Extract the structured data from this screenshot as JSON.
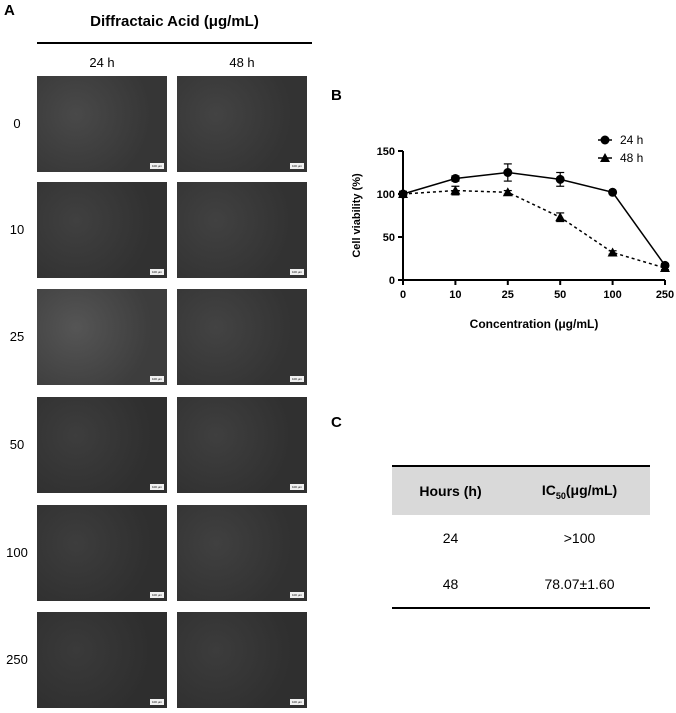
{
  "panel_a": {
    "letter": "A",
    "title": "Diffractaic Acid (μg/mL)",
    "columns": [
      "24 h",
      "48 h"
    ],
    "rows": [
      "0",
      "10",
      "25",
      "50",
      "100",
      "250"
    ],
    "scale_bar_label": "100 μm",
    "brightness": [
      [
        0.55,
        0.45
      ],
      [
        0.4,
        0.42
      ],
      [
        0.75,
        0.45
      ],
      [
        0.35,
        0.38
      ],
      [
        0.35,
        0.4
      ],
      [
        0.3,
        0.33
      ]
    ]
  },
  "panel_b": {
    "letter": "B"
  },
  "panel_c": {
    "letter": "C",
    "table": {
      "headers": [
        "Hours (h)",
        "IC",
        "50",
        "(μg/mL)"
      ],
      "rows": [
        {
          "hours": "24",
          "ic50": ">100"
        },
        {
          "hours": "48",
          "ic50": "78.07±1.60"
        }
      ]
    }
  },
  "chart_data": {
    "type": "line",
    "xlabel": "Concentration (μg/mL)",
    "ylabel": "Cell viability (%)",
    "categories": [
      "0",
      "10",
      "25",
      "50",
      "100",
      "250"
    ],
    "ylim": [
      0,
      150
    ],
    "yticks": [
      0,
      50,
      100,
      150
    ],
    "legend_position": "top-right",
    "series": [
      {
        "name": "24 h",
        "marker": "circle",
        "line": "solid",
        "values": [
          100,
          118,
          125,
          117,
          102,
          17
        ],
        "errors": [
          3,
          3,
          10,
          8,
          1,
          2
        ]
      },
      {
        "name": "48 h",
        "marker": "triangle",
        "line": "dashed",
        "values": [
          100,
          104,
          102,
          73,
          32,
          14
        ],
        "errors": [
          3,
          5,
          2,
          5,
          2,
          2
        ]
      }
    ]
  }
}
